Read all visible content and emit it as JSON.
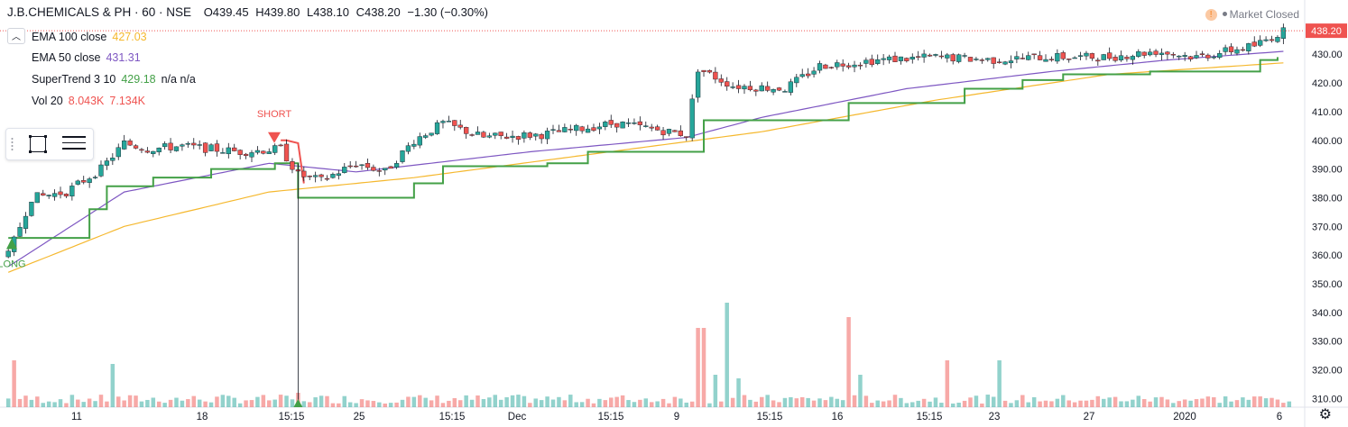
{
  "header": {
    "symbol": "J.B.CHEMICALS & PH · 60 · NSE",
    "open": "O439.45",
    "high": "H439.80",
    "low": "L438.10",
    "close": "C438.20",
    "change": "−1.30 (−0.30%)"
  },
  "indicators": {
    "ema100": {
      "name": "EMA 100 close",
      "value": "427.03",
      "color": "#f5b82e"
    },
    "ema50": {
      "name": "EMA 50 close",
      "value": "431.31",
      "color": "#7e57c2"
    },
    "supertrend": {
      "name": "SuperTrend 3 10",
      "value": "429.18",
      "extra": "n/a n/a",
      "color": "#43a047"
    },
    "volume": {
      "name": "Vol 20",
      "value1": "8.043K",
      "value2": "7.134K"
    }
  },
  "market_status": "Market Closed",
  "last_price": "438.20",
  "signals": {
    "short": "SHORT",
    "long": "LONG"
  },
  "colors": {
    "up": "#26a69a",
    "down": "#ef5350",
    "supertrend": "#43a047",
    "supertrend_down": "#ef5350",
    "ema50": "#7e57c2",
    "ema100": "#f5b82e",
    "price_tag": "#ef5350"
  },
  "chart_data": {
    "type": "candlestick",
    "y_axis_ticks": [
      310,
      320,
      330,
      340,
      350,
      360,
      370,
      380,
      390,
      400,
      410,
      420,
      430
    ],
    "ylim": [
      307,
      442
    ],
    "x_tick_labels": [
      "11",
      "18",
      "15:15",
      "25",
      "15:15",
      "Dec",
      "15:15",
      "9",
      "15:15",
      "16",
      "15:15",
      "23",
      "27",
      "2020",
      "6"
    ],
    "price_path": [
      {
        "bar": 0,
        "price": 360
      },
      {
        "bar": 4,
        "price": 380
      },
      {
        "bar": 10,
        "price": 382
      },
      {
        "bar": 16,
        "price": 390
      },
      {
        "bar": 20,
        "price": 399
      },
      {
        "bar": 24,
        "price": 397
      },
      {
        "bar": 30,
        "price": 398
      },
      {
        "bar": 40,
        "price": 396
      },
      {
        "bar": 47,
        "price": 397
      },
      {
        "bar": 50,
        "price": 388
      },
      {
        "bar": 54,
        "price": 386
      },
      {
        "bar": 60,
        "price": 392
      },
      {
        "bar": 65,
        "price": 389
      },
      {
        "bar": 70,
        "price": 400
      },
      {
        "bar": 75,
        "price": 406
      },
      {
        "bar": 82,
        "price": 401
      },
      {
        "bar": 92,
        "price": 402
      },
      {
        "bar": 105,
        "price": 406
      },
      {
        "bar": 117,
        "price": 402
      },
      {
        "bar": 119,
        "price": 425
      },
      {
        "bar": 125,
        "price": 419
      },
      {
        "bar": 134,
        "price": 418
      },
      {
        "bar": 140,
        "price": 426
      },
      {
        "bar": 150,
        "price": 428
      },
      {
        "bar": 160,
        "price": 429
      },
      {
        "bar": 170,
        "price": 428
      },
      {
        "bar": 178,
        "price": 429
      },
      {
        "bar": 190,
        "price": 429
      },
      {
        "bar": 198,
        "price": 431
      },
      {
        "bar": 205,
        "price": 429
      },
      {
        "bar": 215,
        "price": 433
      },
      {
        "bar": 220,
        "price": 438
      }
    ],
    "supertrend_steps": [
      {
        "bar": 0,
        "value": 366
      },
      {
        "bar": 7,
        "value": 366
      },
      {
        "bar": 14,
        "value": 376
      },
      {
        "bar": 17,
        "value": 384
      },
      {
        "bar": 25,
        "value": 387
      },
      {
        "bar": 35,
        "value": 390
      },
      {
        "bar": 46,
        "value": 392
      },
      {
        "bar": 50,
        "value": 380
      },
      {
        "bar": 68,
        "value": 380
      },
      {
        "bar": 70,
        "value": 385
      },
      {
        "bar": 75,
        "value": 391
      },
      {
        "bar": 93,
        "value": 392
      },
      {
        "bar": 100,
        "value": 396
      },
      {
        "bar": 118,
        "value": 396
      },
      {
        "bar": 120,
        "value": 407
      },
      {
        "bar": 143,
        "value": 407
      },
      {
        "bar": 145,
        "value": 413
      },
      {
        "bar": 165,
        "value": 418
      },
      {
        "bar": 175,
        "value": 421
      },
      {
        "bar": 182,
        "value": 423
      },
      {
        "bar": 197,
        "value": 424
      },
      {
        "bar": 212,
        "value": 424
      },
      {
        "bar": 216,
        "value": 428
      },
      {
        "bar": 219,
        "value": 429
      }
    ],
    "supertrend_down_segment": [
      {
        "bar": 47,
        "value": 400
      },
      {
        "bar": 48,
        "value": 400
      },
      {
        "bar": 50,
        "value": 399
      },
      {
        "bar": 51,
        "value": 385
      }
    ],
    "ema50_points": [
      {
        "bar": 0,
        "value": 356
      },
      {
        "bar": 20,
        "value": 382
      },
      {
        "bar": 45,
        "value": 392
      },
      {
        "bar": 60,
        "value": 389
      },
      {
        "bar": 90,
        "value": 396
      },
      {
        "bar": 117,
        "value": 401
      },
      {
        "bar": 130,
        "value": 408
      },
      {
        "bar": 155,
        "value": 418
      },
      {
        "bar": 180,
        "value": 424
      },
      {
        "bar": 200,
        "value": 428
      },
      {
        "bar": 220,
        "value": 431
      }
    ],
    "ema100_points": [
      {
        "bar": 0,
        "value": 354
      },
      {
        "bar": 20,
        "value": 370
      },
      {
        "bar": 45,
        "value": 382
      },
      {
        "bar": 70,
        "value": 387
      },
      {
        "bar": 100,
        "value": 395
      },
      {
        "bar": 130,
        "value": 403
      },
      {
        "bar": 160,
        "value": 414
      },
      {
        "bar": 190,
        "value": 423
      },
      {
        "bar": 220,
        "value": 427
      }
    ],
    "volume_spikes": [
      {
        "bar": 1,
        "height": 0.13
      },
      {
        "bar": 18,
        "height": 0.12
      },
      {
        "bar": 50,
        "height": 0.04
      },
      {
        "bar": 119,
        "height": 0.22
      },
      {
        "bar": 120,
        "height": 0.22
      },
      {
        "bar": 122,
        "height": 0.09
      },
      {
        "bar": 124,
        "height": 0.29
      },
      {
        "bar": 126,
        "height": 0.08
      },
      {
        "bar": 145,
        "height": 0.25
      },
      {
        "bar": 147,
        "height": 0.09
      },
      {
        "bar": 162,
        "height": 0.13
      },
      {
        "bar": 171,
        "height": 0.13
      }
    ]
  },
  "toolbar": {
    "rectangle_tool": "rectangle-tool",
    "lines_tool": "horizontal-lines-tool"
  }
}
